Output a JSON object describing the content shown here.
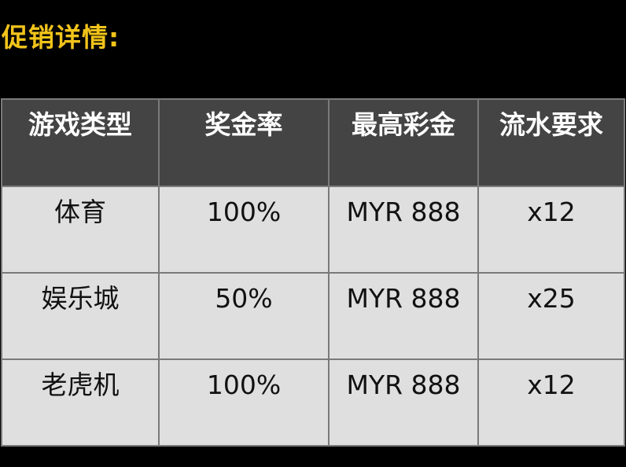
{
  "title": "促销详情:",
  "table": {
    "headers": [
      "游戏类型",
      "奖金率",
      "最高彩金",
      "流水要求"
    ],
    "rows": [
      [
        "体育",
        "100%",
        "MYR 888",
        "x12"
      ],
      [
        "娱乐城",
        "50%",
        "MYR 888",
        "x25"
      ],
      [
        "老虎机",
        "100%",
        "MYR 888",
        "x12"
      ]
    ]
  },
  "colors": {
    "title": "#f2c41a",
    "header_bg": "#444444",
    "cell_bg": "#dfdfdf",
    "border": "#7a7a7a"
  }
}
